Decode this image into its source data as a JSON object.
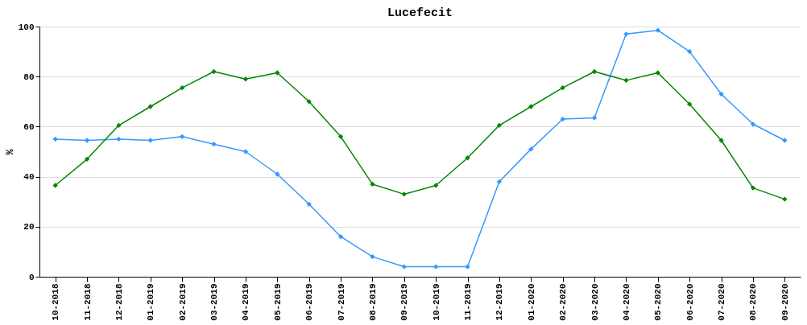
{
  "chart_data": {
    "type": "line",
    "title": "Lucefecit",
    "ylabel": "%",
    "categories": [
      "10-2018",
      "11-2018",
      "12-2018",
      "01-2019",
      "02-2019",
      "03-2019",
      "04-2019",
      "05-2019",
      "06-2019",
      "07-2019",
      "08-2019",
      "09-2019",
      "10-2019",
      "11-2019",
      "12-2019",
      "01-2020",
      "02-2020",
      "03-2020",
      "04-2020",
      "05-2020",
      "06-2020",
      "07-2020",
      "08-2020",
      "09-2020"
    ],
    "series": [
      {
        "color": "#3399ff",
        "values": [
          55,
          54.5,
          55,
          54.5,
          56,
          53,
          50,
          41,
          29,
          16,
          8,
          4,
          4,
          4,
          38,
          51,
          63,
          63.5,
          97,
          98.5,
          90,
          73,
          61,
          54.5
        ]
      },
      {
        "color": "#008800",
        "values": [
          36.5,
          47,
          60.5,
          68,
          75.5,
          82,
          79,
          81.5,
          70,
          56,
          37,
          33,
          36.5,
          47.5,
          60.5,
          68,
          75.5,
          82,
          78.5,
          81.5,
          69,
          54.5,
          35.5,
          31
        ]
      }
    ],
    "ylim": [
      0,
      100
    ],
    "yticks": [
      0,
      20,
      40,
      60,
      80,
      100
    ],
    "grid": "y",
    "legend": false,
    "marker": "diamond",
    "line_style": "solid"
  }
}
